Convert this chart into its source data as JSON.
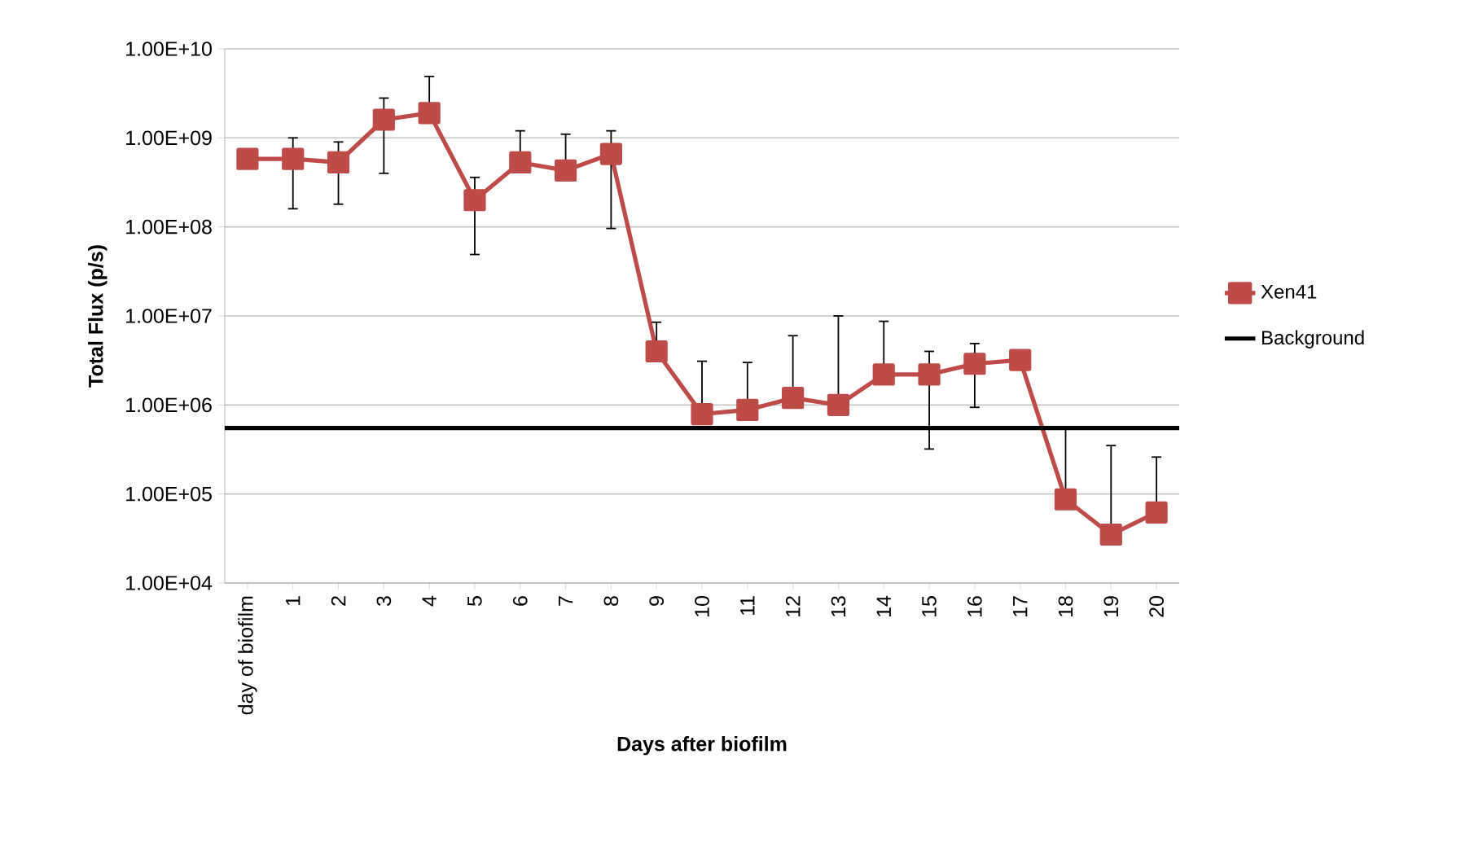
{
  "chart_data": {
    "type": "line",
    "xlabel": "Days after biofilm",
    "ylabel": "Total Flux (p/s)",
    "categories": [
      "day of biofilm",
      "1",
      "2",
      "3",
      "4",
      "5",
      "6",
      "7",
      "8",
      "9",
      "10",
      "11",
      "12",
      "13",
      "14",
      "15",
      "16",
      "17",
      "18",
      "19",
      "20"
    ],
    "series": [
      {
        "name": "Xen41",
        "color": "#be4b48",
        "values": [
          580000000.0,
          580000000.0,
          530000000.0,
          1600000000.0,
          1900000000.0,
          200000000.0,
          530000000.0,
          430000000.0,
          660000000.0,
          4000000.0,
          790000.0,
          880000.0,
          1200000.0,
          1000000.0,
          2200000.0,
          2200000.0,
          2900000.0,
          3200000.0,
          87000.0,
          35000.0,
          62000.0
        ],
        "errors": [
          null,
          [
            160000000.0,
            1000000000.0
          ],
          [
            180000000.0,
            900000000.0
          ],
          [
            400000000.0,
            2800000000.0
          ],
          [
            1900000000.0,
            4900000000.0
          ],
          [
            49000000.0,
            360000000.0
          ],
          [
            530000000.0,
            1200000000.0
          ],
          [
            430000000.0,
            1100000000.0
          ],
          [
            96000000.0,
            1200000000.0
          ],
          [
            4000000.0,
            8500000.0
          ],
          [
            790000.0,
            3100000.0
          ],
          [
            880000.0,
            3000000.0
          ],
          [
            1200000.0,
            6000000.0
          ],
          [
            1000000.0,
            10000000.0
          ],
          [
            2200000.0,
            8700000.0
          ],
          [
            320000.0,
            4000000.0
          ],
          [
            940000.0,
            4900000.0
          ],
          null,
          [
            87000.0,
            550000.0
          ],
          [
            35000.0,
            350000.0
          ],
          [
            62000.0,
            260000.0
          ]
        ]
      }
    ],
    "ref_lines": [
      {
        "axis": "y",
        "value": 550000.0,
        "label": "Background",
        "color": "#000000"
      }
    ],
    "log": "y",
    "ylim": [
      10000.0,
      10000000000.0
    ],
    "yticks": [
      {
        "value": 10000.0,
        "label": "1.00E+04"
      },
      {
        "value": 100000.0,
        "label": "1.00E+05"
      },
      {
        "value": 1000000.0,
        "label": "1.00E+06"
      },
      {
        "value": 10000000.0,
        "label": "1.00E+07"
      },
      {
        "value": 100000000.0,
        "label": "1.00E+08"
      },
      {
        "value": 1000000000.0,
        "label": "1.00E+09"
      },
      {
        "value": 10000000000.0,
        "label": "1.00E+10"
      }
    ],
    "grid": "y",
    "legend": "right",
    "marker": "square",
    "line_style": "solid"
  }
}
